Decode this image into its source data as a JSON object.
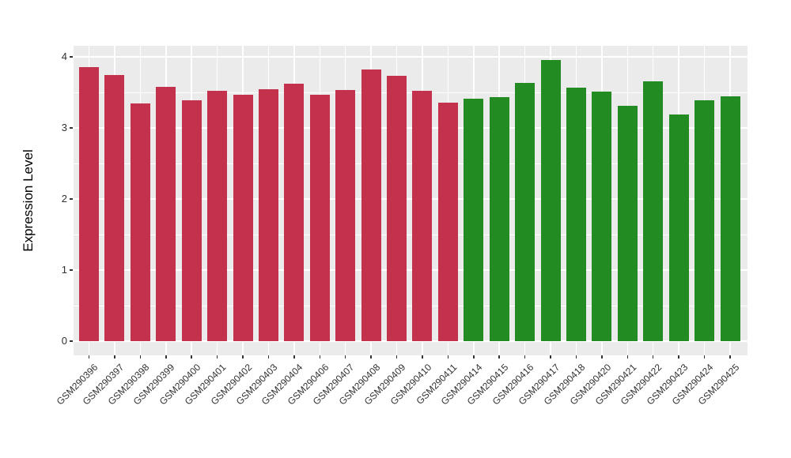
{
  "chart_data": {
    "type": "bar",
    "title": "",
    "xlabel": "",
    "ylabel": "Expression Level",
    "ylim": [
      0,
      4
    ],
    "yticks": [
      0,
      1,
      2,
      3,
      4
    ],
    "yticks_minor": [
      0.5,
      1.5,
      2.5,
      3.5
    ],
    "grid": true,
    "legend_position": "none",
    "panel_bg": "#EBEBEB",
    "grid_color": "#FFFFFF",
    "axis_text_color": "#303030",
    "group_colors": {
      "group1": "#C4314D",
      "group2": "#228B22"
    },
    "bars": [
      {
        "label": "GSM290396",
        "value": 3.86,
        "group": "group1"
      },
      {
        "label": "GSM290397",
        "value": 3.74,
        "group": "group1"
      },
      {
        "label": "GSM290398",
        "value": 3.35,
        "group": "group1"
      },
      {
        "label": "GSM290399",
        "value": 3.58,
        "group": "group1"
      },
      {
        "label": "GSM290400",
        "value": 3.39,
        "group": "group1"
      },
      {
        "label": "GSM290401",
        "value": 3.52,
        "group": "group1"
      },
      {
        "label": "GSM290402",
        "value": 3.47,
        "group": "group1"
      },
      {
        "label": "GSM290403",
        "value": 3.54,
        "group": "group1"
      },
      {
        "label": "GSM290404",
        "value": 3.62,
        "group": "group1"
      },
      {
        "label": "GSM290406",
        "value": 3.47,
        "group": "group1"
      },
      {
        "label": "GSM290407",
        "value": 3.53,
        "group": "group1"
      },
      {
        "label": "GSM290408",
        "value": 3.82,
        "group": "group1"
      },
      {
        "label": "GSM290409",
        "value": 3.73,
        "group": "group1"
      },
      {
        "label": "GSM290410",
        "value": 3.52,
        "group": "group1"
      },
      {
        "label": "GSM290411",
        "value": 3.36,
        "group": "group1"
      },
      {
        "label": "GSM290414",
        "value": 3.41,
        "group": "group2"
      },
      {
        "label": "GSM290415",
        "value": 3.43,
        "group": "group2"
      },
      {
        "label": "GSM290416",
        "value": 3.63,
        "group": "group2"
      },
      {
        "label": "GSM290417",
        "value": 3.96,
        "group": "group2"
      },
      {
        "label": "GSM290418",
        "value": 3.57,
        "group": "group2"
      },
      {
        "label": "GSM290420",
        "value": 3.51,
        "group": "group2"
      },
      {
        "label": "GSM290421",
        "value": 3.31,
        "group": "group2"
      },
      {
        "label": "GSM290422",
        "value": 3.66,
        "group": "group2"
      },
      {
        "label": "GSM290423",
        "value": 3.19,
        "group": "group2"
      },
      {
        "label": "GSM290424",
        "value": 3.39,
        "group": "group2"
      },
      {
        "label": "GSM290425",
        "value": 3.44,
        "group": "group2"
      }
    ]
  }
}
